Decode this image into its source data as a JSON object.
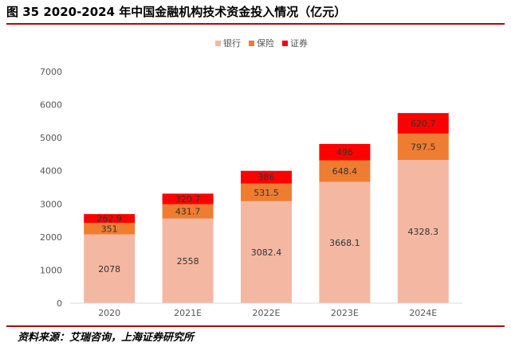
{
  "header": {
    "title": "图 35 2020-2024 年中国金融机构技术资金投入情况（亿元）"
  },
  "footer": {
    "source": "资料来源：艾瑞咨询，上海证券研究所"
  },
  "chart_data": {
    "type": "bar",
    "stacked": true,
    "title": "图 35 2020-2024 年中国金融机构技术资金投入情况（亿元）",
    "xlabel": "",
    "ylabel": "",
    "categories": [
      "2020",
      "2021E",
      "2022E",
      "2023E",
      "2024E"
    ],
    "ylim": [
      0,
      7000
    ],
    "yticks": [
      "0",
      "1000",
      "2000",
      "3000",
      "4000",
      "5000",
      "6000",
      "7000"
    ],
    "legend_position": "top",
    "grid": false,
    "series": [
      {
        "name": "银行",
        "color": "#f4b8a2",
        "values": [
          2078,
          2558,
          3082.4,
          3668.1,
          4328.3
        ],
        "labels": [
          "2078",
          "2558",
          "3082.4",
          "3668.1",
          "4328.3"
        ]
      },
      {
        "name": "保险",
        "color": "#ee7d31",
        "values": [
          351,
          431.7,
          531.5,
          648.4,
          797.5
        ],
        "labels": [
          "351",
          "431.7",
          "531.5",
          "648.4",
          "797.5"
        ]
      },
      {
        "name": "证券",
        "color": "#ff0000",
        "values": [
          262.9,
          320.7,
          386,
          496,
          620.7
        ],
        "labels": [
          "262.9",
          "320.7",
          "386",
          "496",
          "620.7"
        ]
      }
    ]
  }
}
